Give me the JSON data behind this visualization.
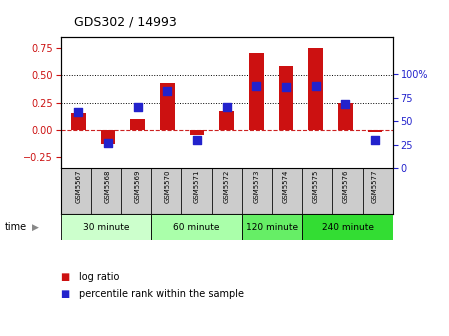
{
  "title": "GDS302 / 14993",
  "samples": [
    "GSM5567",
    "GSM5568",
    "GSM5569",
    "GSM5570",
    "GSM5571",
    "GSM5572",
    "GSM5573",
    "GSM5574",
    "GSM5575",
    "GSM5576",
    "GSM5577"
  ],
  "log_ratio": [
    0.15,
    -0.13,
    0.1,
    0.43,
    -0.05,
    0.17,
    0.7,
    0.58,
    0.75,
    0.25,
    -0.02
  ],
  "percentile": [
    60,
    27,
    65,
    82,
    30,
    65,
    88,
    87,
    88,
    68,
    30
  ],
  "bar_color": "#cc1111",
  "dot_color": "#2222cc",
  "ylim_left": [
    -0.35,
    0.85
  ],
  "ylim_right": [
    0,
    140
  ],
  "yticks_left": [
    -0.25,
    0,
    0.25,
    0.5,
    0.75
  ],
  "yticks_right": [
    0,
    25,
    50,
    75,
    100
  ],
  "hlines": [
    0.25,
    0.5
  ],
  "zero_line_color": "#cc2222",
  "groups": [
    {
      "label": "30 minute",
      "start": 0,
      "end": 3,
      "color": "#ccffcc"
    },
    {
      "label": "60 minute",
      "start": 3,
      "end": 6,
      "color": "#aaffaa"
    },
    {
      "label": "120 minute",
      "start": 6,
      "end": 8,
      "color": "#66ee66"
    },
    {
      "label": "240 minute",
      "start": 8,
      "end": 11,
      "color": "#33dd33"
    }
  ],
  "bg_color": "#ffffff",
  "plot_bg": "#ffffff",
  "tick_label_color_left": "#cc1111",
  "tick_label_color_right": "#2222cc",
  "bar_width": 0.5,
  "dot_size": 28,
  "right_axis_label_suffix": "%"
}
